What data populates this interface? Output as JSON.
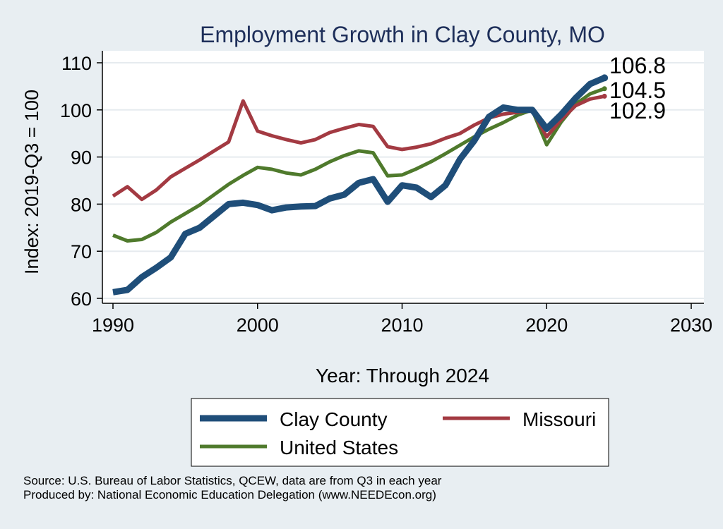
{
  "chart_data": {
    "type": "line",
    "title": "Employment Growth in Clay County, MO",
    "xlabel": "Year: Through 2024",
    "ylabel": "Index: 2019-Q3 = 100",
    "xlim": [
      1990,
      2030
    ],
    "ylim": [
      60,
      110
    ],
    "xticks": [
      "1990",
      "2000",
      "2010",
      "2020",
      "2030"
    ],
    "yticks": [
      "60",
      "70",
      "80",
      "90",
      "100",
      "110"
    ],
    "grid": true,
    "legend_position": "bottom",
    "x": [
      1990,
      1991,
      1992,
      1993,
      1994,
      1995,
      1996,
      1997,
      1998,
      1999,
      2000,
      2001,
      2002,
      2003,
      2004,
      2005,
      2006,
      2007,
      2008,
      2009,
      2010,
      2011,
      2012,
      2013,
      2014,
      2015,
      2016,
      2017,
      2018,
      2019,
      2020,
      2021,
      2022,
      2023,
      2024
    ],
    "series": [
      {
        "name": "Clay  County",
        "color": "#1f4e79",
        "values": [
          61.3,
          61.8,
          64.5,
          66.5,
          68.7,
          73.7,
          75.0,
          77.5,
          80.0,
          80.3,
          79.8,
          78.7,
          79.3,
          79.5,
          79.6,
          81.2,
          82.0,
          84.5,
          85.3,
          80.5,
          84.0,
          83.5,
          81.5,
          84.0,
          89.5,
          93.5,
          98.5,
          100.5,
          100.0,
          100.0,
          96.0,
          99.0,
          102.5,
          105.5,
          106.8
        ]
      },
      {
        "name": "Missouri",
        "color": "#a33a42",
        "values": [
          81.7,
          83.7,
          81.0,
          83.0,
          85.8,
          87.6,
          89.4,
          91.3,
          93.2,
          101.9,
          95.5,
          94.5,
          93.7,
          93.0,
          93.7,
          95.2,
          96.1,
          96.9,
          96.5,
          92.2,
          91.6,
          92.1,
          92.8,
          94.0,
          95.0,
          96.8,
          98.3,
          99.1,
          99.5,
          100.0,
          94.3,
          97.9,
          100.9,
          102.3,
          102.9
        ]
      },
      {
        "name": "United States",
        "color": "#4f7a2c",
        "values": [
          73.4,
          72.2,
          72.5,
          74.0,
          76.2,
          78.0,
          79.8,
          82.0,
          84.2,
          86.1,
          87.8,
          87.4,
          86.6,
          86.2,
          87.4,
          89.0,
          90.3,
          91.3,
          90.9,
          86.0,
          86.2,
          87.5,
          89.0,
          90.7,
          92.5,
          94.3,
          95.9,
          97.3,
          98.9,
          100.0,
          92.6,
          97.4,
          101.2,
          103.4,
          104.5
        ]
      }
    ],
    "end_labels": [
      "106.8",
      "104.5",
      "102.9"
    ],
    "end_label_color": "#000000"
  },
  "source_line1": "Source: U.S. Bureau of Labor Statistics, QCEW, data are from Q3 in each year",
  "source_line2": "Produced by: National Economic Education Delegation (www.NEEDEcon.org)"
}
